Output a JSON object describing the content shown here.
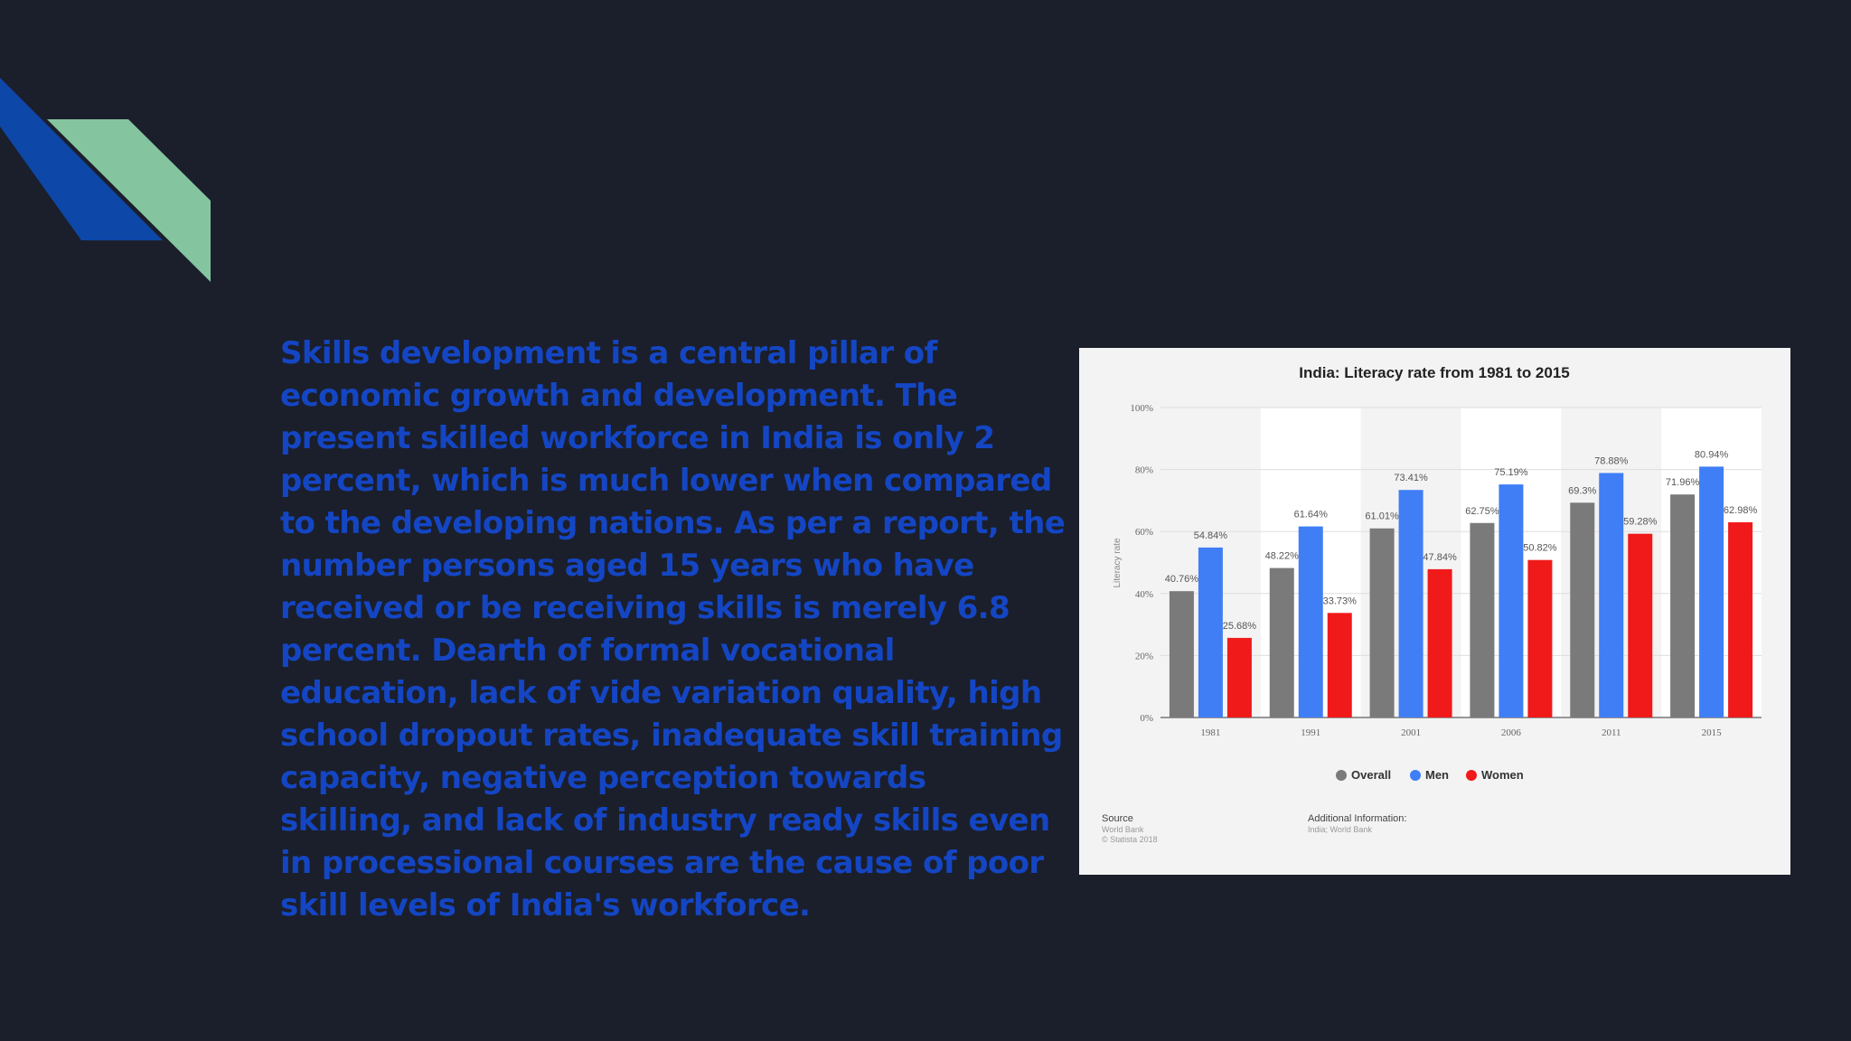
{
  "paragraph": "Skills development is a central pillar of economic growth and development. The present skilled workforce in India is only 2 percent, which is much lower when compared to the developing nations. As per a report, the number persons aged 15 years who have received or be receiving skills is merely 6.8 percent. Dearth of formal vocational education, lack of vide variation quality, high school dropout rates, inadequate skill training capacity, negative perception towards skilling, and lack of industry ready skills even in processional courses are the cause of poor skill levels of India's workforce.",
  "colors": {
    "background": "#1b1f2b",
    "text": "#1446c4",
    "deco_blue": "#0d47a8",
    "deco_green": "#84c5a0"
  },
  "chart_data": {
    "type": "bar",
    "title": "India: Literacy rate from 1981 to 2015",
    "ylabel": "Literacy rate",
    "xlabel": "",
    "ylim": [
      0,
      100
    ],
    "yticks": [
      "0%",
      "20%",
      "40%",
      "60%",
      "80%",
      "100%"
    ],
    "categories": [
      "1981",
      "1991",
      "2001",
      "2006",
      "2011",
      "2015"
    ],
    "series": [
      {
        "name": "Overall",
        "color": "#7a7a7a",
        "values": [
          40.76,
          48.22,
          61.01,
          62.75,
          69.3,
          71.96
        ],
        "labels": [
          "40.76%",
          "48.22%",
          "61.01%",
          "62.75%",
          "69.3%",
          "71.96%"
        ]
      },
      {
        "name": "Men",
        "color": "#3f7ef5",
        "values": [
          54.84,
          61.64,
          73.41,
          75.19,
          78.88,
          80.94
        ],
        "labels": [
          "54.84%",
          "61.64%",
          "73.41%",
          "75.19%",
          "78.88%",
          "80.94%"
        ]
      },
      {
        "name": "Women",
        "color": "#f01a1a",
        "values": [
          25.68,
          33.73,
          47.84,
          50.82,
          59.28,
          62.98
        ],
        "labels": [
          "25.68%",
          "33.73%",
          "47.84%",
          "50.82%",
          "59.28%",
          "62.98%"
        ]
      }
    ],
    "legend_position": "bottom",
    "grid": true,
    "footer": {
      "source_title": "Source",
      "source_lines": [
        "World Bank",
        "© Statista 2018"
      ],
      "info_title": "Additional Information:",
      "info_lines": [
        "India; World Bank"
      ]
    }
  }
}
